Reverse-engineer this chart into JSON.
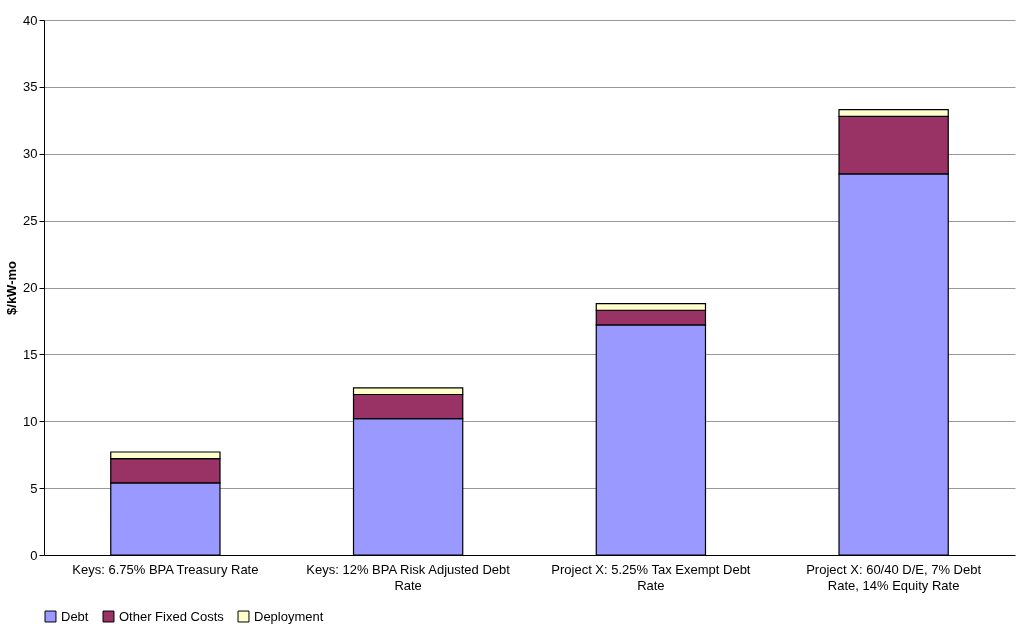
{
  "chart_data": {
    "type": "bar",
    "stacked": true,
    "ylabel": "$/kW-mo",
    "categories": [
      "Keys: 6.75% BPA Treasury Rate",
      "Keys: 12% BPA Risk Adjusted Debt Rate",
      "Project X: 5.25% Tax Exempt Debt Rate",
      "Project X: 60/40 D/E, 7% Debt Rate, 14% Equity Rate"
    ],
    "series": [
      {
        "name": "Debt",
        "color": "#9999ff",
        "values": [
          5.4,
          10.2,
          17.2,
          28.5
        ]
      },
      {
        "name": "Other Fixed Costs",
        "color": "#993366",
        "values": [
          1.8,
          1.8,
          1.1,
          4.3
        ]
      },
      {
        "name": "Deployment",
        "color": "#ffffcc",
        "values": [
          0.5,
          0.5,
          0.5,
          0.5
        ]
      }
    ],
    "ylim": [
      0,
      40
    ],
    "yticks": [
      0,
      5,
      10,
      15,
      20,
      25,
      30,
      35,
      40
    ],
    "grid": "y",
    "legend": "bottom"
  }
}
